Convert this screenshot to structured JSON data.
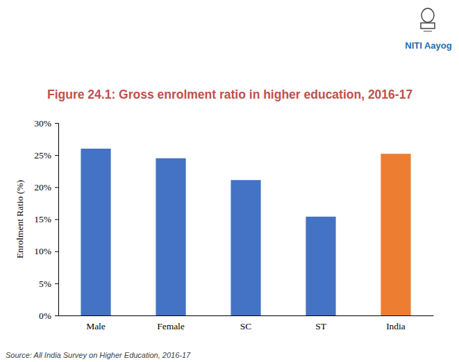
{
  "chart_data": {
    "type": "bar",
    "title": "Figure 24.1: Gross enrolment ratio in higher education, 2016-17",
    "y_label": "Enrolment Ratio (%)",
    "categories": [
      "Male",
      "Female",
      "SC",
      "ST",
      "India"
    ],
    "values": [
      26.0,
      24.5,
      21.1,
      15.4,
      25.2
    ],
    "colors": [
      "#4472c4",
      "#4472c4",
      "#4472c4",
      "#4472c4",
      "#ed7d31"
    ],
    "ylim": [
      0,
      30
    ],
    "yticks": [
      {
        "value": 0,
        "label": "0%"
      },
      {
        "value": 5,
        "label": "5%"
      },
      {
        "value": 10,
        "label": "10%"
      },
      {
        "value": 15,
        "label": "15%"
      },
      {
        "value": 20,
        "label": "20%"
      },
      {
        "value": 25,
        "label": "25%"
      },
      {
        "value": 30,
        "label": "30%"
      }
    ],
    "grid": false,
    "source": "Source: All India Survey on Higher Education, 2016-17",
    "logo_text": "NITI Aayog"
  }
}
